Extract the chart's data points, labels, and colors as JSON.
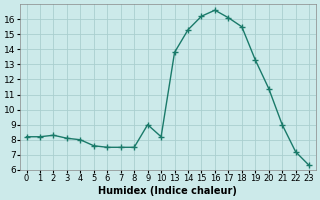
{
  "x_labels": [
    "0",
    "1",
    "2",
    "3",
    "4",
    "5",
    "6",
    "7",
    "8",
    "9",
    "10",
    "13",
    "14",
    "15",
    "16",
    "17",
    "18",
    "19",
    "20",
    "21",
    "22",
    "23"
  ],
  "y": [
    8.2,
    8.2,
    8.3,
    8.1,
    8.0,
    7.6,
    7.5,
    7.5,
    7.5,
    9.0,
    8.2,
    13.8,
    15.3,
    16.2,
    16.6,
    16.1,
    15.5,
    13.3,
    11.4,
    9.0,
    7.2,
    6.3
  ],
  "line_color": "#1a7a6a",
  "marker": "+",
  "marker_size": 4,
  "marker_lw": 1.0,
  "line_width": 1.0,
  "bg_color": "#cceaea",
  "grid_color": "#aacfcf",
  "xlabel": "Humidex (Indice chaleur)",
  "ylim": [
    6,
    17
  ],
  "yticks": [
    6,
    7,
    8,
    9,
    10,
    11,
    12,
    13,
    14,
    15,
    16
  ],
  "ylabel_fontsize": 6.5,
  "xlabel_fontsize": 7,
  "tick_fontsize": 6
}
